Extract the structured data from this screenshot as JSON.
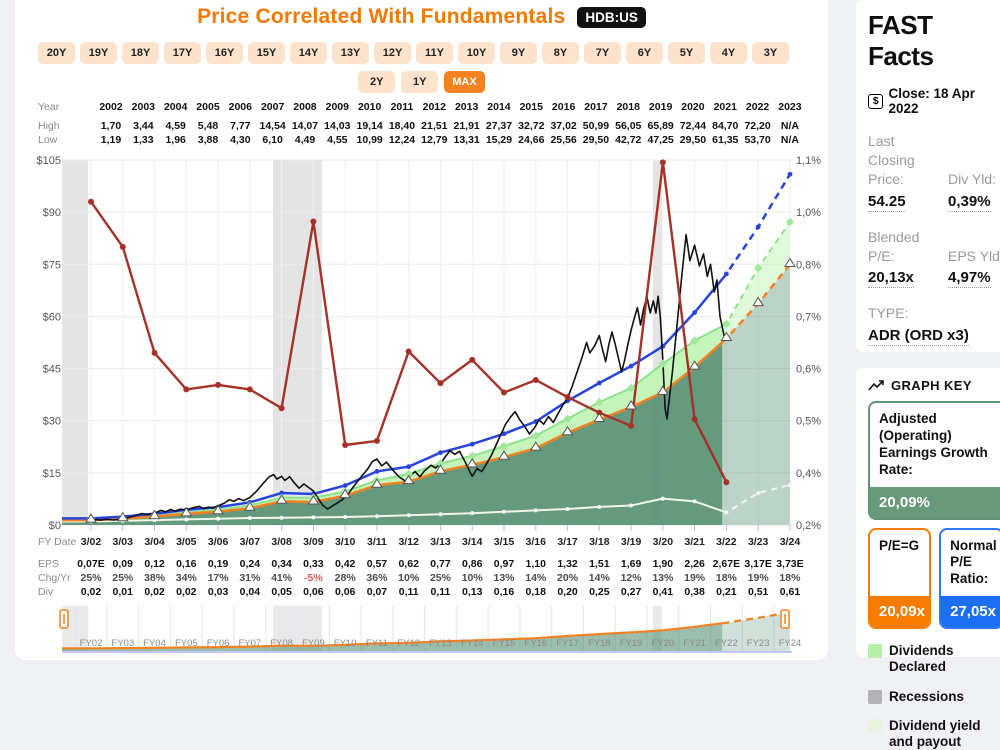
{
  "page": {
    "title": "Price Correlated With Fundamentals",
    "ticker": "HDB:US"
  },
  "toolbar": {
    "year_buttons": [
      "20Y",
      "19Y",
      "18Y",
      "17Y",
      "16Y",
      "15Y",
      "14Y",
      "13Y",
      "12Y",
      "11Y",
      "10Y",
      "9Y",
      "8Y",
      "7Y",
      "6Y",
      "5Y",
      "4Y",
      "3Y"
    ],
    "year_buttons_row2": [
      "2Y",
      "1Y"
    ],
    "max_button": "MAX",
    "active_button": "MAX"
  },
  "price_table": {
    "row_labels": [
      "Year",
      "High",
      "Low"
    ],
    "years": [
      "2002",
      "2003",
      "2004",
      "2005",
      "2006",
      "2007",
      "2008",
      "2009",
      "2010",
      "2011",
      "2012",
      "2013",
      "2014",
      "2015",
      "2016",
      "2017",
      "2018",
      "2019",
      "2020",
      "2021",
      "2022",
      "2023"
    ],
    "high": [
      "1,70",
      "3,44",
      "4,59",
      "5,48",
      "7,77",
      "14,54",
      "14,07",
      "14,03",
      "19,14",
      "18,40",
      "21,51",
      "21,91",
      "27,37",
      "32,72",
      "37,02",
      "50,99",
      "56,05",
      "65,89",
      "72,44",
      "84,70",
      "72,20",
      "N/A"
    ],
    "low": [
      "1,19",
      "1,33",
      "1,96",
      "3,88",
      "4,30",
      "6,10",
      "4,49",
      "4,55",
      "10,99",
      "12,24",
      "12,79",
      "13,31",
      "15,29",
      "24,66",
      "25,56",
      "29,50",
      "42,72",
      "47,25",
      "29,50",
      "61,35",
      "53,70",
      "N/A"
    ]
  },
  "bottom_rows": {
    "fy_label": "FY Date",
    "fy_dates": [
      "3/02",
      "3/03",
      "3/04",
      "3/05",
      "3/06",
      "3/07",
      "3/08",
      "3/09",
      "3/10",
      "3/11",
      "3/12",
      "3/13",
      "3/14",
      "3/15",
      "3/16",
      "3/17",
      "3/18",
      "3/19",
      "3/20",
      "3/21",
      "3/22",
      "3/23",
      "3/24"
    ],
    "eps_label": "EPS",
    "eps": [
      "0,07E",
      "0,09",
      "0,12",
      "0,16",
      "0,19",
      "0,24",
      "0,34",
      "0,33",
      "0,42",
      "0,57",
      "0,62",
      "0,77",
      "0,86",
      "0,97",
      "1,10",
      "1,32",
      "1,51",
      "1,69",
      "1,90",
      "2,26",
      "2,67E",
      "3,17E",
      "3,73E"
    ],
    "chg_label": "Chg/Yr",
    "chg": [
      "25%",
      "25%",
      "38%",
      "34%",
      "17%",
      "31%",
      "41%",
      "-5%",
      "28%",
      "36%",
      "10%",
      "25%",
      "10%",
      "13%",
      "14%",
      "20%",
      "14%",
      "12%",
      "13%",
      "19%",
      "18%",
      "19%",
      "18%"
    ],
    "div_label": "Div",
    "div": [
      "0,02",
      "0,01",
      "0,02",
      "0,02",
      "0,03",
      "0,04",
      "0,05",
      "0,06",
      "0,06",
      "0,07",
      "0,11",
      "0,11",
      "0,13",
      "0,16",
      "0,18",
      "0,20",
      "0,25",
      "0,27",
      "0,41",
      "0,38",
      "0,21",
      "0,51",
      "0,61"
    ]
  },
  "fast_facts": {
    "heading": "FAST Facts",
    "close_label": "Close: 18 Apr 2022",
    "items": [
      {
        "label": "Last Closing Price:",
        "value": "54.25"
      },
      {
        "label": "Div Yld:",
        "value": "0,39%"
      },
      {
        "label": "Blended P/E:",
        "value": "20,13x"
      },
      {
        "label": "EPS Yld:",
        "value": "4,97%"
      },
      {
        "label": "TYPE:",
        "value": "ADR (ORD x3)"
      }
    ]
  },
  "graph_key": {
    "heading": "GRAPH KEY",
    "growth_card": {
      "label": "Adjusted (Operating) Earnings Growth Rate:",
      "value": "20,09%",
      "color": "#68997b",
      "border": "#5d9478"
    },
    "peg_card": {
      "label": "P/E=G",
      "value": "20,09x",
      "color": "#f57c00",
      "border": "#f57c00"
    },
    "normal_pe_card": {
      "label": "Normal P/E Ratio:",
      "value": "27,05x",
      "color": "#1d6ff2",
      "border": "#2e7af5"
    },
    "legend": [
      {
        "label": "Dividends Declared",
        "color": "#b5f0a8"
      },
      {
        "label": "Recessions",
        "color": "#b3b3b3"
      },
      {
        "label": "Dividend yield and payout",
        "color": "#e8f3de"
      }
    ]
  },
  "colors": {
    "accent_orange": "#f58220",
    "earnings_fill": "#589174",
    "dividend_band": "#c3f4b8",
    "normal_pe_blue": "#2743e0",
    "red_line": "#a53129",
    "price_black": "#111111",
    "recession_gray": "#e4e4e4",
    "payout_pale": "#eef7e8"
  },
  "chart_data": {
    "type": "line",
    "title": "Price Correlated With Fundamentals",
    "x_labels": [
      "3/02",
      "3/03",
      "3/04",
      "3/05",
      "3/06",
      "3/07",
      "3/08",
      "3/09",
      "3/10",
      "3/11",
      "3/12",
      "3/13",
      "3/14",
      "3/15",
      "3/16",
      "3/17",
      "3/18",
      "3/19",
      "3/20",
      "3/21",
      "3/22",
      "3/23",
      "3/24"
    ],
    "left_axis": {
      "ticks": [
        "$105",
        "$90",
        "$75",
        "$60",
        "$45",
        "$30",
        "$15",
        "$0"
      ],
      "values": [
        105,
        90,
        75,
        60,
        45,
        30,
        15,
        0
      ],
      "range": [
        0,
        105
      ]
    },
    "right_axis": {
      "ticks": [
        "1,1%",
        "1,0%",
        "0,8%",
        "0,7%",
        "0,6%",
        "0,5%",
        "0,4%",
        "0,2%"
      ]
    },
    "grid": true,
    "forecast_split_index": 19.87,
    "recession_bands_index": [
      [
        -0.91,
        -0.09
      ],
      [
        5.73,
        7.27
      ],
      [
        17.69,
        17.97
      ]
    ],
    "series": [
      {
        "name": "adjusted-operating-earnings",
        "color": "#f58220",
        "marker": "triangle",
        "values": [
          1.41,
          1.81,
          2.41,
          3.21,
          3.82,
          4.82,
          6.83,
          6.63,
          8.44,
          11.45,
          12.46,
          15.47,
          17.28,
          19.49,
          22.1,
          26.52,
          30.34,
          33.95,
          38.17,
          45.4,
          53.64,
          63.69,
          74.94
        ]
      },
      {
        "name": "normal-pe-ratio",
        "color": "#2743e0",
        "marker": "dot",
        "values": [
          1.89,
          2.43,
          3.25,
          4.33,
          5.14,
          6.49,
          9.2,
          8.93,
          11.36,
          15.42,
          16.77,
          20.83,
          23.26,
          26.24,
          29.76,
          35.71,
          40.85,
          45.71,
          51.4,
          61.13,
          72.22,
          85.75,
          100.9
        ]
      },
      {
        "name": "dividends-declared-top",
        "color": "#8de18b",
        "marker": "diamond",
        "values": [
          1.81,
          2.01,
          2.81,
          3.62,
          4.42,
          5.63,
          7.84,
          7.84,
          9.64,
          12.86,
          14.67,
          17.68,
          19.89,
          22.7,
          25.72,
          30.54,
          35.36,
          39.38,
          46.41,
          53.04,
          57.86,
          73.93,
          87.19
        ]
      },
      {
        "name": "dividend-yield-and-payout",
        "color": "#eef7e8",
        "marker": "smalldot",
        "values": [
          1.0,
          1.2,
          1.4,
          1.6,
          1.8,
          2.0,
          2.1,
          2.2,
          2.3,
          2.5,
          2.8,
          3.1,
          3.4,
          3.8,
          4.2,
          4.6,
          5.2,
          5.6,
          7.6,
          6.8,
          3.6,
          9.2,
          11.5
        ]
      },
      {
        "name": "annual-red-indicator",
        "color": "#a53129",
        "marker": "dot",
        "values": [
          93,
          80,
          49.5,
          39,
          40.3,
          39,
          33.6,
          87.3,
          23,
          24.2,
          49.9,
          40.8,
          47.5,
          38.1,
          41.7,
          36.8,
          32.3,
          28.5,
          104.3,
          30.4,
          12.3
        ]
      }
    ],
    "price_line": {
      "name": "monthly-price",
      "color": "#111111",
      "points": [
        [
          0,
          1.3
        ],
        [
          0.15,
          1.55
        ],
        [
          0.3,
          1.4
        ],
        [
          0.5,
          1.65
        ],
        [
          0.7,
          1.45
        ],
        [
          0.9,
          1.6
        ],
        [
          1.05,
          1.8
        ],
        [
          1.2,
          2.2
        ],
        [
          1.4,
          2.7
        ],
        [
          1.6,
          3.3
        ],
        [
          1.8,
          3.0
        ],
        [
          2.0,
          3.35
        ],
        [
          2.2,
          4.2
        ],
        [
          2.35,
          3.8
        ],
        [
          2.5,
          4.45
        ],
        [
          2.65,
          4.0
        ],
        [
          2.8,
          4.55
        ],
        [
          3.0,
          4.3
        ],
        [
          3.2,
          4.95
        ],
        [
          3.4,
          5.35
        ],
        [
          3.55,
          4.7
        ],
        [
          3.7,
          5.15
        ],
        [
          3.85,
          4.85
        ],
        [
          4.0,
          5.5
        ],
        [
          4.2,
          6.3
        ],
        [
          4.35,
          7.25
        ],
        [
          4.5,
          6.8
        ],
        [
          4.65,
          7.6
        ],
        [
          4.8,
          7.0
        ],
        [
          5.0,
          7.9
        ],
        [
          5.2,
          9.6
        ],
        [
          5.4,
          11.8
        ],
        [
          5.6,
          13.8
        ],
        [
          5.75,
          14.5
        ],
        [
          5.85,
          13.2
        ],
        [
          6.0,
          14.0
        ],
        [
          6.1,
          12.8
        ],
        [
          6.25,
          13.9
        ],
        [
          6.4,
          12.1
        ],
        [
          6.55,
          10.6
        ],
        [
          6.7,
          11.8
        ],
        [
          6.85,
          10.8
        ],
        [
          7.0,
          9.8
        ],
        [
          7.15,
          7.6
        ],
        [
          7.3,
          5.6
        ],
        [
          7.45,
          4.6
        ],
        [
          7.6,
          5.5
        ],
        [
          7.75,
          6.3
        ],
        [
          7.9,
          7.2
        ],
        [
          8.1,
          9.0
        ],
        [
          8.3,
          11.5
        ],
        [
          8.5,
          13.8
        ],
        [
          8.7,
          16.0
        ],
        [
          8.85,
          18.2
        ],
        [
          9.0,
          19.0
        ],
        [
          9.15,
          17.0
        ],
        [
          9.3,
          18.1
        ],
        [
          9.5,
          15.8
        ],
        [
          9.7,
          13.8
        ],
        [
          9.9,
          12.6
        ],
        [
          10.05,
          14.2
        ],
        [
          10.2,
          15.4
        ],
        [
          10.35,
          13.9
        ],
        [
          10.5,
          15.6
        ],
        [
          10.7,
          17.2
        ],
        [
          10.85,
          16.4
        ],
        [
          11.0,
          17.6
        ],
        [
          11.15,
          19.6
        ],
        [
          11.3,
          21.4
        ],
        [
          11.45,
          20.3
        ],
        [
          11.6,
          21.2
        ],
        [
          11.75,
          18.6
        ],
        [
          11.9,
          15.8
        ],
        [
          12.0,
          14.0
        ],
        [
          12.15,
          16.2
        ],
        [
          12.3,
          15.4
        ],
        [
          12.45,
          17.6
        ],
        [
          12.6,
          20.0
        ],
        [
          12.75,
          23.0
        ],
        [
          12.9,
          26.0
        ],
        [
          13.05,
          29.0
        ],
        [
          13.2,
          31.0
        ],
        [
          13.35,
          32.6
        ],
        [
          13.5,
          30.2
        ],
        [
          13.65,
          28.4
        ],
        [
          13.8,
          26.2
        ],
        [
          13.95,
          27.8
        ],
        [
          14.1,
          30.2
        ],
        [
          14.25,
          29.0
        ],
        [
          14.4,
          31.2
        ],
        [
          14.55,
          29.5
        ],
        [
          14.7,
          32.0
        ],
        [
          14.85,
          34.5
        ],
        [
          15.0,
          36.5
        ],
        [
          15.15,
          40.0
        ],
        [
          15.3,
          44.0
        ],
        [
          15.45,
          48.0
        ],
        [
          15.6,
          52.5
        ],
        [
          15.7,
          49.5
        ],
        [
          15.85,
          51.5
        ],
        [
          16.0,
          54.5
        ],
        [
          16.1,
          50.5
        ],
        [
          16.2,
          47.0
        ],
        [
          16.3,
          52.0
        ],
        [
          16.4,
          55.5
        ],
        [
          16.5,
          52.0
        ],
        [
          16.6,
          48.0
        ],
        [
          16.7,
          44.0
        ],
        [
          16.8,
          47.5
        ],
        [
          16.9,
          52.0
        ],
        [
          17.0,
          56.0
        ],
        [
          17.1,
          59.5
        ],
        [
          17.2,
          62.5
        ],
        [
          17.3,
          57.5
        ],
        [
          17.4,
          62.5
        ],
        [
          17.5,
          65.5
        ],
        [
          17.6,
          61.0
        ],
        [
          17.7,
          64.5
        ],
        [
          17.78,
          61.0
        ],
        [
          17.85,
          65.8
        ],
        [
          17.92,
          60.0
        ],
        [
          18.0,
          47.0
        ],
        [
          18.07,
          33.5
        ],
        [
          18.13,
          30.5
        ],
        [
          18.3,
          44.0
        ],
        [
          18.45,
          58.0
        ],
        [
          18.6,
          72.0
        ],
        [
          18.73,
          83.5
        ],
        [
          18.85,
          76.0
        ],
        [
          19.0,
          80.5
        ],
        [
          19.15,
          74.5
        ],
        [
          19.28,
          78.0
        ],
        [
          19.4,
          71.5
        ],
        [
          19.5,
          75.0
        ],
        [
          19.62,
          67.0
        ],
        [
          19.7,
          70.5
        ],
        [
          19.8,
          60.0
        ],
        [
          19.88,
          56.5
        ],
        [
          19.95,
          53.5
        ]
      ]
    },
    "minimap": {
      "labels": [
        "FY02",
        "FY03",
        "FY04",
        "FY05",
        "FY06",
        "FY07",
        "FY08",
        "FY09",
        "FY10",
        "FY11",
        "FY12",
        "FY13",
        "FY14",
        "FY15",
        "FY16",
        "FY17",
        "FY18",
        "FY19",
        "FY20",
        "FY21",
        "FY22",
        "FY23",
        "FY24"
      ]
    }
  }
}
